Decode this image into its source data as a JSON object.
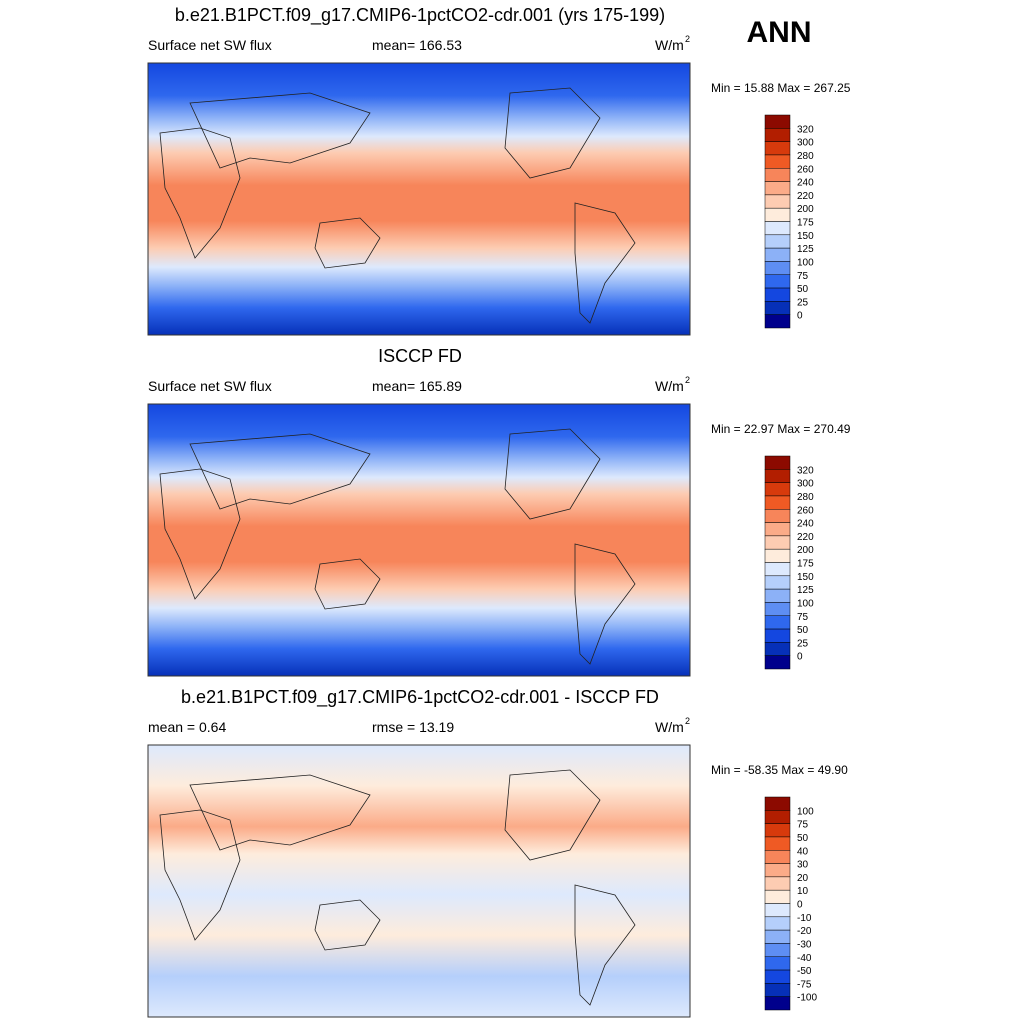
{
  "season": "ANN",
  "panels": [
    {
      "title": "b.e21.B1PCT.f09_g17.CMIP6-1pctCO2-cdr.001 (yrs 175-199)",
      "left": "Surface net SW flux",
      "center": "mean= 166.53",
      "units": "W/m",
      "units_sup": "2",
      "minmax": "Min =  15.88 Max = 267.25",
      "colorbar_labels": [
        "320",
        "300",
        "280",
        "260",
        "240",
        "220",
        "200",
        "175",
        "150",
        "125",
        "100",
        "75",
        "50",
        "25",
        "0"
      ]
    },
    {
      "title": "ISCCP FD",
      "left": "Surface net SW flux",
      "center": "mean= 165.89",
      "units": "W/m",
      "units_sup": "2",
      "minmax": "Min =  22.97 Max = 270.49",
      "colorbar_labels": [
        "320",
        "300",
        "280",
        "260",
        "240",
        "220",
        "200",
        "175",
        "150",
        "125",
        "100",
        "75",
        "50",
        "25",
        "0"
      ]
    },
    {
      "title": "b.e21.B1PCT.f09_g17.CMIP6-1pctCO2-cdr.001 - ISCCP FD",
      "left": "mean =   0.64",
      "center": "rmse =  13.19",
      "units": "W/m",
      "units_sup": "2",
      "minmax": "Min = -58.35 Max =  49.90",
      "colorbar_labels": [
        "100",
        "75",
        "50",
        "40",
        "30",
        "20",
        "10",
        "0",
        "-10",
        "-20",
        "-30",
        "-40",
        "-50",
        "-75",
        "-100"
      ]
    }
  ],
  "colorbar_colors": [
    "#8c0a00",
    "#b21e00",
    "#d73a0c",
    "#ef5a24",
    "#f7855a",
    "#fbab88",
    "#fdccb2",
    "#feecdc",
    "#dde9fd",
    "#b5cffb",
    "#8cb1f7",
    "#5e8ef3",
    "#2f68ee",
    "#1447e0",
    "#0630b8",
    "#00008c"
  ]
}
